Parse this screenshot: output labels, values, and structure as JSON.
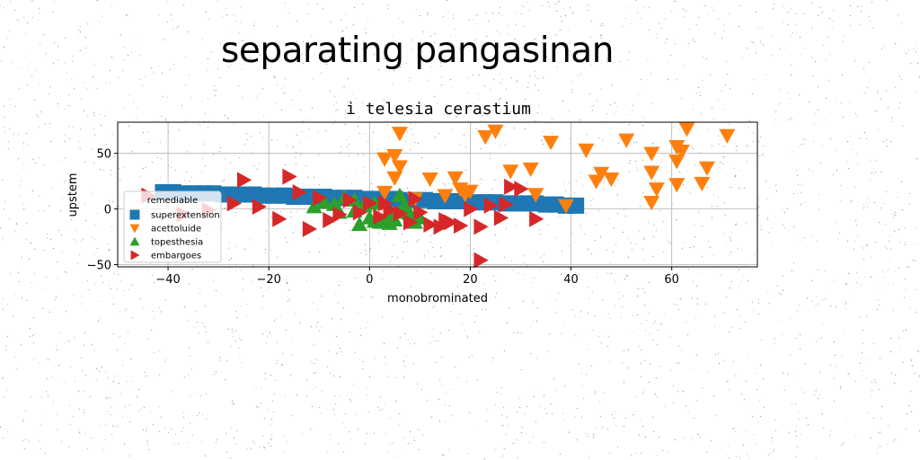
{
  "figure_title": "separating pangasinan",
  "chart_data": {
    "type": "scatter",
    "title": "i telesia cerastium",
    "xlabel": "monobrominated",
    "ylabel": "upstem",
    "xlim": [
      -50,
      77
    ],
    "ylim": [
      -52,
      78
    ],
    "xticks": [
      -40,
      -20,
      0,
      20,
      40,
      60
    ],
    "yticks": [
      -50,
      0,
      50
    ],
    "grid": true,
    "legend": {
      "title": "remediable",
      "placement": "center-left"
    },
    "series": [
      {
        "name": "superextension",
        "marker": "square",
        "color": "#1f77b4",
        "points": [
          [
            -41,
            15
          ],
          [
            -39,
            15
          ],
          [
            -37,
            14
          ],
          [
            -35,
            14
          ],
          [
            -33,
            14
          ],
          [
            -31,
            14
          ],
          [
            -29,
            13
          ],
          [
            -27,
            13
          ],
          [
            -25,
            13
          ],
          [
            -23,
            13
          ],
          [
            -21,
            12
          ],
          [
            -19,
            12
          ],
          [
            -17,
            12
          ],
          [
            -15,
            11
          ],
          [
            -13,
            11
          ],
          [
            -11,
            11
          ],
          [
            -9,
            11
          ],
          [
            -7,
            10
          ],
          [
            -5,
            10
          ],
          [
            -3,
            10
          ],
          [
            -1,
            9
          ],
          [
            1,
            9
          ],
          [
            3,
            9
          ],
          [
            5,
            9
          ],
          [
            7,
            8
          ],
          [
            9,
            8
          ],
          [
            11,
            8
          ],
          [
            13,
            7
          ],
          [
            15,
            7
          ],
          [
            17,
            7
          ],
          [
            19,
            7
          ],
          [
            21,
            6
          ],
          [
            23,
            6
          ],
          [
            25,
            6
          ],
          [
            27,
            5
          ],
          [
            29,
            5
          ],
          [
            31,
            5
          ],
          [
            33,
            5
          ],
          [
            35,
            4
          ],
          [
            37,
            4
          ],
          [
            39,
            3
          ],
          [
            41,
            3
          ]
        ]
      },
      {
        "name": "acettoluide",
        "marker": "triangle-down",
        "color": "#ff7f0e",
        "points": [
          [
            6,
            68
          ],
          [
            3,
            45
          ],
          [
            5,
            48
          ],
          [
            6,
            38
          ],
          [
            5,
            28
          ],
          [
            3,
            15
          ],
          [
            12,
            27
          ],
          [
            15,
            12
          ],
          [
            17,
            28
          ],
          [
            18,
            18
          ],
          [
            19,
            13
          ],
          [
            23,
            65
          ],
          [
            25,
            70
          ],
          [
            28,
            34
          ],
          [
            32,
            36
          ],
          [
            33,
            13
          ],
          [
            36,
            60
          ],
          [
            39,
            3
          ],
          [
            43,
            53
          ],
          [
            45,
            25
          ],
          [
            46,
            32
          ],
          [
            48,
            27
          ],
          [
            51,
            62
          ],
          [
            56,
            50
          ],
          [
            56,
            33
          ],
          [
            56,
            6
          ],
          [
            57,
            18
          ],
          [
            61,
            43
          ],
          [
            61,
            56
          ],
          [
            62,
            52
          ],
          [
            61,
            22
          ],
          [
            63,
            72
          ],
          [
            66,
            23
          ],
          [
            67,
            37
          ],
          [
            71,
            66
          ],
          [
            9,
            9
          ],
          [
            20,
            16
          ]
        ]
      },
      {
        "name": "topesthesia",
        "marker": "triangle-up",
        "color": "#2ca02c",
        "points": [
          [
            -11,
            2
          ],
          [
            -9,
            6
          ],
          [
            -7,
            4
          ],
          [
            -5,
            10
          ],
          [
            -3,
            -2
          ],
          [
            -2,
            -14
          ],
          [
            -1,
            3
          ],
          [
            0,
            -8
          ],
          [
            1,
            -11
          ],
          [
            2,
            -12
          ],
          [
            3,
            -12
          ],
          [
            4,
            -5
          ],
          [
            5,
            -10
          ],
          [
            6,
            12
          ],
          [
            7,
            3
          ],
          [
            8,
            -4
          ],
          [
            9,
            -12
          ],
          [
            10,
            -8
          ],
          [
            4,
            -13
          ],
          [
            -3,
            8
          ],
          [
            -6,
            -3
          ],
          [
            1,
            5
          ],
          [
            6,
            -3
          ]
        ]
      },
      {
        "name": "embargoes",
        "marker": "triangle-right",
        "color": "#d62728",
        "points": [
          [
            -44,
            12
          ],
          [
            -37,
            -5
          ],
          [
            -32,
            -1
          ],
          [
            -27,
            5
          ],
          [
            -25,
            26
          ],
          [
            -22,
            2
          ],
          [
            -16,
            29
          ],
          [
            -14,
            15
          ],
          [
            -12,
            -18
          ],
          [
            -10,
            10
          ],
          [
            -8,
            -10
          ],
          [
            -6,
            -5
          ],
          [
            -4,
            8
          ],
          [
            -2,
            -3
          ],
          [
            0,
            5
          ],
          [
            2,
            -7
          ],
          [
            4,
            -1
          ],
          [
            6,
            -4
          ],
          [
            8,
            -12
          ],
          [
            10,
            -3
          ],
          [
            12,
            -14
          ],
          [
            14,
            -16
          ],
          [
            16,
            -12
          ],
          [
            18,
            -15
          ],
          [
            20,
            0
          ],
          [
            22,
            -16
          ],
          [
            22,
            -46
          ],
          [
            24,
            3
          ],
          [
            26,
            -8
          ],
          [
            28,
            20
          ],
          [
            30,
            18
          ],
          [
            33,
            -9
          ],
          [
            -18,
            -9
          ],
          [
            3,
            5
          ],
          [
            9,
            9
          ],
          [
            15,
            -10
          ],
          [
            27,
            4
          ]
        ]
      }
    ]
  }
}
